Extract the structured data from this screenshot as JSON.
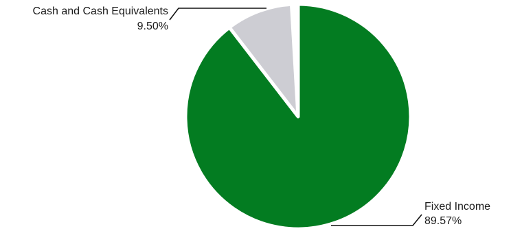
{
  "chart_data": {
    "type": "pie",
    "categories": [
      "Fixed Income",
      "Cash and Cash Equivalents"
    ],
    "values": [
      89.57,
      9.5
    ],
    "labels": [
      {
        "name": "Fixed Income",
        "value_text": "89.57%"
      },
      {
        "name": "Cash and Cash Equivalents",
        "value_text": "9.50%"
      }
    ],
    "colors": [
      "#037c21",
      "#cdcdd3"
    ],
    "start_angle": "12 o'clock",
    "direction": "clockwise",
    "legend": "none"
  }
}
